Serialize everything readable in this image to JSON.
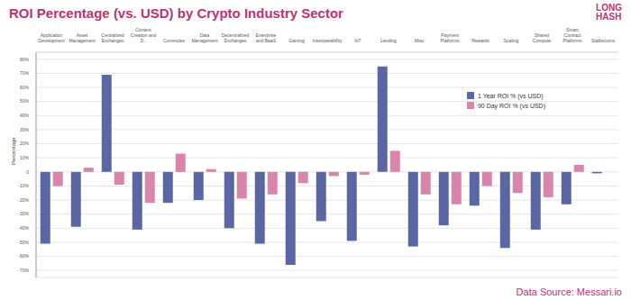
{
  "chart_data": {
    "type": "bar",
    "title": "ROI Percentage (vs. USD) by Crypto Industry Sector",
    "logo": [
      "LONG",
      "HASH"
    ],
    "source": "Data Source: Messari.io",
    "y_label": "Percentage",
    "categories": [
      "Application Development",
      "Asset Management",
      "Centralized Exchanges",
      "Content Creation and D..",
      "Currencies",
      "Data Management",
      "Decentralized Exchanges",
      "Enterprise and BaaS",
      "Gaming",
      "Interoperability",
      "IoT",
      "Lending",
      "Misc",
      "Payment Platforms",
      "Rewards",
      "Scaling",
      "Shared Compute",
      "Smart Contract Platforms",
      "Stablecoins"
    ],
    "series": [
      {
        "name": "1 Year ROI % (vs USD)",
        "color": "#5b67a5",
        "values": [
          -51,
          -39,
          69,
          -41,
          -22,
          -20,
          -40,
          -51,
          -66,
          -35,
          -49,
          75,
          -53,
          -38,
          -24,
          -54,
          -41,
          -23,
          -1
        ]
      },
      {
        "name": "90 Day ROI % (vs USD)",
        "color": "#d984ab",
        "values": [
          -10,
          3,
          -9,
          -22,
          13,
          2,
          -19,
          -16,
          -8,
          -3,
          -2,
          15,
          -16,
          -23,
          -10,
          -15,
          -18,
          5,
          0
        ]
      }
    ],
    "ylim": [
      -75,
      85
    ],
    "yticks": [
      {
        "value": -70,
        "label": "-70%"
      },
      {
        "value": -60,
        "label": "-60%"
      },
      {
        "value": -50,
        "label": "-50%"
      },
      {
        "value": -40,
        "label": "-40%"
      },
      {
        "value": -30,
        "label": "-30%"
      },
      {
        "value": -20,
        "label": "-20%"
      },
      {
        "value": -10,
        "label": "-10%"
      },
      {
        "value": 0,
        "label": "0"
      },
      {
        "value": 10,
        "label": "10%"
      },
      {
        "value": 20,
        "label": "20%"
      },
      {
        "value": 30,
        "label": "30%"
      },
      {
        "value": 40,
        "label": "40%"
      },
      {
        "value": 50,
        "label": "50%"
      },
      {
        "value": 60,
        "label": "60%"
      },
      {
        "value": 70,
        "label": "70%"
      },
      {
        "value": 80,
        "label": "80%"
      }
    ],
    "grid": true,
    "legend": "upper right"
  }
}
